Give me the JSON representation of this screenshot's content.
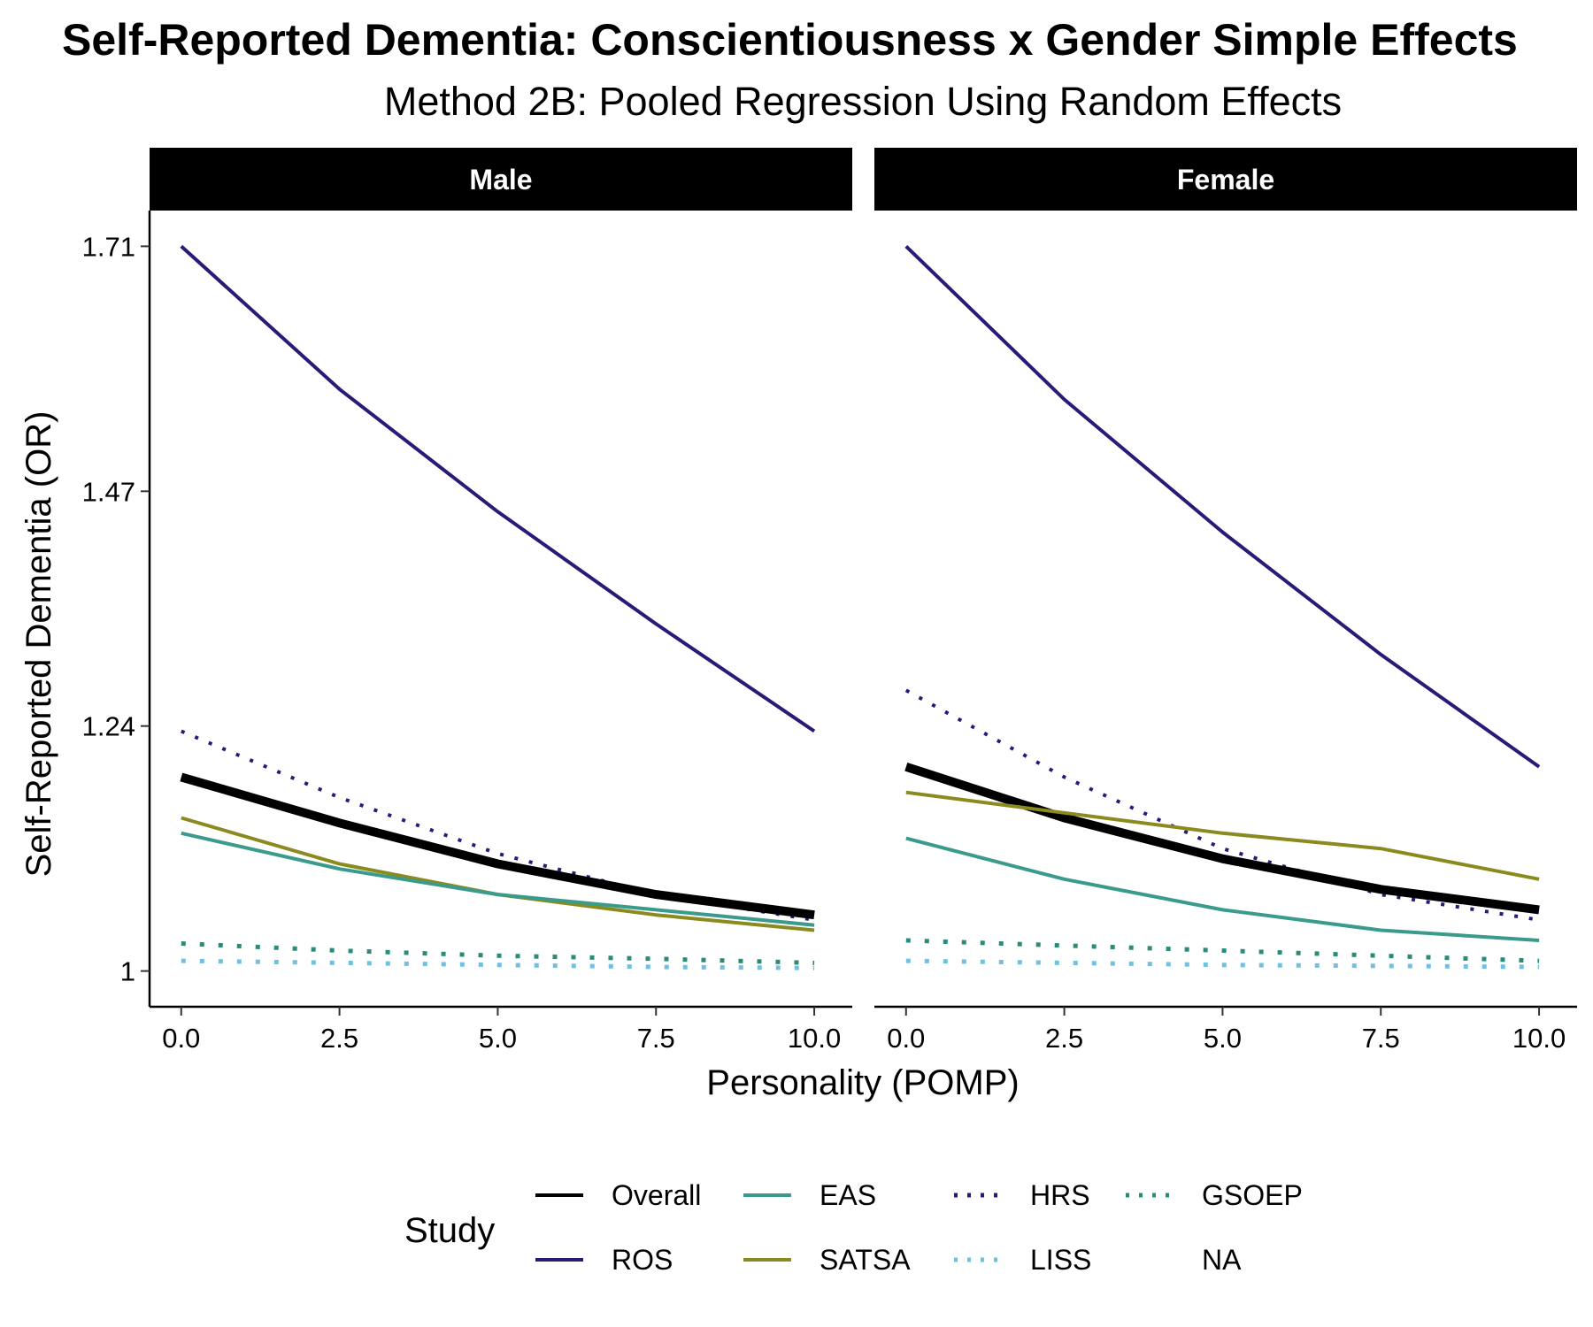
{
  "chart_data": {
    "type": "line",
    "title": "Self-Reported Dementia: Conscientiousness x Gender Simple Effects",
    "subtitle": "Method 2B: Pooled Regression Using Random Effects",
    "xlabel": "Personality (POMP)",
    "ylabel": "Self-Reported Dementia (OR)",
    "xlim": [
      -0.5,
      10.6
    ],
    "ylim": [
      0.965,
      1.745
    ],
    "x_ticks": [
      0,
      2.5,
      5,
      7.5,
      10
    ],
    "x_tick_labels": [
      "0.0",
      "2.5",
      "5.0",
      "7.5",
      "10.0"
    ],
    "y_ticks": [
      1,
      1.24,
      1.47,
      1.71
    ],
    "y_tick_labels": [
      "1",
      "1.24",
      "1.47",
      "1.71"
    ],
    "legend": {
      "title": "Study",
      "position": "bottom",
      "entries": [
        "Overall",
        "ROS",
        "EAS",
        "SATSA",
        "HRS",
        "LISS",
        "GSOEP",
        "NA"
      ]
    },
    "grid": false,
    "facets": [
      {
        "label": "Male",
        "series": [
          {
            "name": "ROS",
            "color": "#2a1a78",
            "dash": "solid",
            "width": 4,
            "x": [
              0,
              2.5,
              5,
              7.5,
              10
            ],
            "y": [
              1.71,
              1.57,
              1.45,
              1.34,
              1.235
            ]
          },
          {
            "name": "HRS",
            "color": "#2a1a78",
            "dash": "dotted",
            "width": 4,
            "x": [
              0,
              2.5,
              5,
              7.5,
              10
            ],
            "y": [
              1.235,
              1.17,
              1.115,
              1.075,
              1.05
            ]
          },
          {
            "name": "Overall",
            "color": "#000000",
            "dash": "solid",
            "width": 10,
            "x": [
              0,
              2.5,
              5,
              7.5,
              10
            ],
            "y": [
              1.19,
              1.145,
              1.105,
              1.075,
              1.055
            ]
          },
          {
            "name": "SATSA",
            "color": "#8a8a1e",
            "dash": "solid",
            "width": 4,
            "x": [
              0,
              2.5,
              5,
              7.5,
              10
            ],
            "y": [
              1.15,
              1.105,
              1.075,
              1.055,
              1.04
            ]
          },
          {
            "name": "EAS",
            "color": "#3a9a8c",
            "dash": "solid",
            "width": 4,
            "x": [
              0,
              2.5,
              5,
              7.5,
              10
            ],
            "y": [
              1.135,
              1.1,
              1.075,
              1.06,
              1.045
            ]
          },
          {
            "name": "GSOEP",
            "color": "#2a8c78",
            "dash": "dotted",
            "width": 5,
            "x": [
              0,
              2.5,
              5,
              7.5,
              10
            ],
            "y": [
              1.027,
              1.02,
              1.015,
              1.012,
              1.008
            ]
          },
          {
            "name": "LISS",
            "color": "#6ec1e0",
            "dash": "dotted",
            "width": 5,
            "x": [
              0,
              2.5,
              5,
              7.5,
              10
            ],
            "y": [
              1.01,
              1.008,
              1.006,
              1.004,
              1.003
            ]
          }
        ]
      },
      {
        "label": "Female",
        "series": [
          {
            "name": "ROS",
            "color": "#2a1a78",
            "dash": "solid",
            "width": 4,
            "x": [
              0,
              2.5,
              5,
              7.5,
              10
            ],
            "y": [
              1.71,
              1.56,
              1.43,
              1.31,
              1.2
            ]
          },
          {
            "name": "HRS",
            "color": "#2a1a78",
            "dash": "dotted",
            "width": 4,
            "x": [
              0,
              2.5,
              5,
              7.5,
              10
            ],
            "y": [
              1.275,
              1.19,
              1.12,
              1.075,
              1.05
            ]
          },
          {
            "name": "Overall",
            "color": "#000000",
            "dash": "solid",
            "width": 10,
            "x": [
              0,
              2.5,
              5,
              7.5,
              10
            ],
            "y": [
              1.2,
              1.15,
              1.11,
              1.08,
              1.06
            ]
          },
          {
            "name": "SATSA",
            "color": "#8a8a1e",
            "dash": "solid",
            "width": 4,
            "x": [
              0,
              2.5,
              5,
              7.5,
              10
            ],
            "y": [
              1.175,
              1.155,
              1.135,
              1.12,
              1.09
            ]
          },
          {
            "name": "EAS",
            "color": "#3a9a8c",
            "dash": "solid",
            "width": 4,
            "x": [
              0,
              2.5,
              5,
              7.5,
              10
            ],
            "y": [
              1.13,
              1.09,
              1.06,
              1.04,
              1.03
            ]
          },
          {
            "name": "GSOEP",
            "color": "#2a8c78",
            "dash": "dotted",
            "width": 5,
            "x": [
              0,
              2.5,
              5,
              7.5,
              10
            ],
            "y": [
              1.03,
              1.025,
              1.02,
              1.015,
              1.01
            ]
          },
          {
            "name": "LISS",
            "color": "#6ec1e0",
            "dash": "dotted",
            "width": 5,
            "x": [
              0,
              2.5,
              5,
              7.5,
              10
            ],
            "y": [
              1.01,
              1.008,
              1.006,
              1.005,
              1.004
            ]
          }
        ]
      }
    ]
  },
  "legend_styles": [
    {
      "name": "Overall",
      "color": "#000000",
      "dash": "solid"
    },
    {
      "name": "ROS",
      "color": "#2a1a78",
      "dash": "solid"
    },
    {
      "name": "EAS",
      "color": "#3a9a8c",
      "dash": "solid"
    },
    {
      "name": "SATSA",
      "color": "#8a8a1e",
      "dash": "solid"
    },
    {
      "name": "HRS",
      "color": "#2a1a78",
      "dash": "dotted"
    },
    {
      "name": "LISS",
      "color": "#6ec1e0",
      "dash": "dotted"
    },
    {
      "name": "GSOEP",
      "color": "#2a8c78",
      "dash": "dotted"
    },
    {
      "name": "NA",
      "color": "",
      "dash": "none"
    }
  ]
}
